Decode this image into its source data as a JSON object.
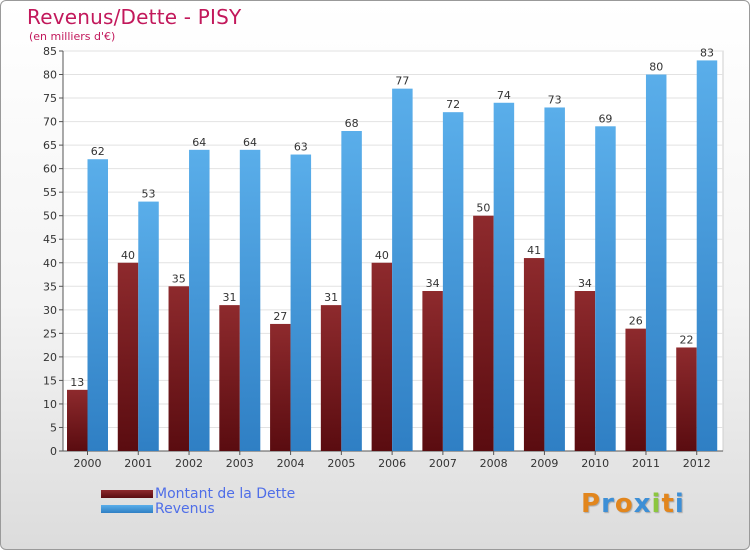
{
  "chart_data": {
    "type": "bar",
    "title": "Revenus/Dette - PISY",
    "subtitle": "(en milliers d'€)",
    "categories": [
      "2000",
      "2001",
      "2002",
      "2003",
      "2004",
      "2005",
      "2006",
      "2007",
      "2008",
      "2009",
      "2010",
      "2011",
      "2012"
    ],
    "series": [
      {
        "name": "Montant de la Dette",
        "values": [
          13,
          40,
          35,
          31,
          27,
          31,
          40,
          34,
          50,
          41,
          34,
          26,
          22
        ],
        "color": "#7a1a1e"
      },
      {
        "name": "Revenus",
        "values": [
          62,
          53,
          64,
          64,
          63,
          68,
          77,
          72,
          74,
          73,
          69,
          80,
          83
        ],
        "color": "#4a9fe3"
      }
    ],
    "ylim": [
      0,
      85
    ],
    "yticks": [
      0,
      5,
      10,
      15,
      20,
      25,
      30,
      35,
      40,
      45,
      50,
      55,
      60,
      65,
      70,
      75,
      80,
      85
    ],
    "grid": true,
    "legend": "bottom-left"
  },
  "brand": {
    "letters": [
      "P",
      "r",
      "o",
      "x",
      "i",
      "t",
      "i"
    ],
    "colors": [
      "#e2861d",
      "#3d8fd6",
      "#e2861d",
      "#3d8fd6",
      "#8cc63f",
      "#e2861d",
      "#3d8fd6"
    ]
  }
}
